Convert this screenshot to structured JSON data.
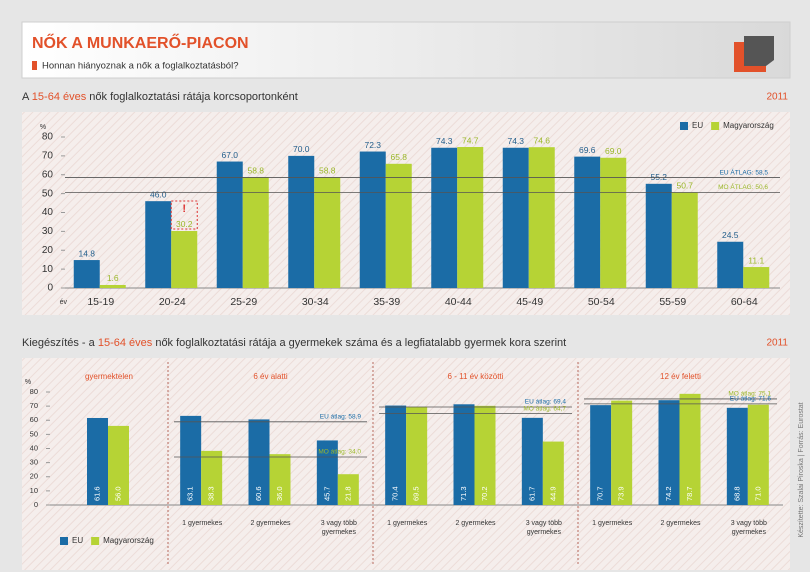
{
  "header": {
    "title": "NŐK A MUNKAERŐ-PIACON",
    "subtitle": "Honnan hiányoznak a nők a foglalkoztatásból?"
  },
  "credit": "Készítette: Szalai Piroska | Forrás: Eurostat",
  "chart_data": [
    {
      "type": "bar",
      "title": [
        "A ",
        "15-64 éves",
        " nők foglalkoztatási rátája korcsoportonként"
      ],
      "year": "2011",
      "y_label": "%",
      "x_label": "év",
      "categories": [
        "15-19",
        "20-24",
        "25-29",
        "30-34",
        "35-39",
        "40-44",
        "45-49",
        "50-54",
        "55-59",
        "60-64"
      ],
      "series": [
        {
          "name": "EU",
          "color": "#1b6ca6",
          "values": [
            14.8,
            46.0,
            67.0,
            70.0,
            72.3,
            74.3,
            74.3,
            69.6,
            55.2,
            24.5
          ],
          "value_labels": [
            "14.8",
            "46.0",
            "67.0",
            "70.0",
            "72.3",
            "74.3",
            "74.3",
            "69.6",
            "55.2",
            "24.5"
          ]
        },
        {
          "name": "Magyarország",
          "color": "#b6d335",
          "values": [
            1.6,
            30.2,
            58.8,
            58.8,
            65.8,
            74.7,
            74.6,
            69.0,
            50.7,
            11.1
          ],
          "value_labels": [
            "1.6",
            "30.2",
            "58.8",
            "58.8",
            "65.8",
            "74.7",
            "74.6",
            "69.0",
            "50.7",
            "11.1"
          ]
        }
      ],
      "ylim": [
        0,
        80
      ],
      "yticks": [
        0,
        10,
        20,
        30,
        40,
        50,
        60,
        70,
        80
      ],
      "ref_lines": [
        {
          "label": "EU ÁTLAG: 58,5",
          "value": 58.5,
          "color": "#1b6ca6"
        },
        {
          "label": "MO ÁTLAG: 50,6",
          "value": 50.6,
          "color": "#9bb82a"
        }
      ],
      "highlight": {
        "category": "20-24",
        "text": "!"
      },
      "legend": "top-right"
    },
    {
      "type": "grouped-bar",
      "title": [
        "Kiegészítés - a ",
        "15-64 éves",
        " nők foglalkoztatási rátája a gyermekek száma és a legfiatalabb gyermek kora szerint"
      ],
      "year": "2011",
      "y_label": "%",
      "groups": [
        {
          "name": "gyermektelen",
          "categories": [
            null
          ],
          "ref_lines": []
        },
        {
          "name": "6 év alatti",
          "categories": [
            "1 gyermekes",
            "2 gyermekes",
            "3 vagy több gyermekes"
          ],
          "ref_lines": [
            {
              "label": "EU átlag: 58,9",
              "value": 58.9,
              "color": "#1b6ca6"
            },
            {
              "label": "MO átlag: 34,0",
              "value": 34.0,
              "color": "#9bb82a"
            }
          ]
        },
        {
          "name": "6 - 11 év közötti",
          "categories": [
            "1 gyermekes",
            "2 gyermekes",
            "3 vagy több gyermekes"
          ],
          "ref_lines": [
            {
              "label": "EU átlag: 69,4",
              "value": 69.4,
              "color": "#1b6ca6"
            },
            {
              "label": "MO átlag: 64,7",
              "value": 64.7,
              "color": "#9bb82a"
            }
          ]
        },
        {
          "name": "12 év feletti",
          "categories": [
            "1 gyermekes",
            "2 gyermekes",
            "3 vagy több gyermekes"
          ],
          "ref_lines": [
            {
              "label": "MO átlag: 75,1",
              "value": 75.1,
              "color": "#9bb82a"
            },
            {
              "label": "EU átlag: 71,6",
              "value": 71.6,
              "color": "#1b6ca6"
            }
          ]
        }
      ],
      "series": [
        {
          "name": "EU",
          "color": "#1b6ca6",
          "values": [
            61.6,
            63.1,
            60.6,
            45.7,
            70.4,
            71.3,
            61.7,
            70.7,
            74.2,
            68.8
          ],
          "value_labels": [
            "61.6",
            "63.1",
            "60.6",
            "45.7",
            "70.4",
            "71.3",
            "61.7",
            "70.7",
            "74.2",
            "68.8"
          ]
        },
        {
          "name": "Magyarország",
          "color": "#b6d335",
          "values": [
            56.0,
            38.3,
            36.0,
            21.8,
            69.5,
            70.2,
            44.9,
            73.9,
            78.7,
            71.0
          ],
          "value_labels": [
            "56.0",
            "38.3",
            "36.0",
            "21.8",
            "69.5",
            "70.2",
            "44.9",
            "73.9",
            "78.7",
            "71.0"
          ]
        }
      ],
      "ylim": [
        0,
        80
      ],
      "yticks": [
        0,
        10,
        20,
        30,
        40,
        50,
        60,
        70,
        80
      ],
      "legend": "bottom-left"
    }
  ]
}
